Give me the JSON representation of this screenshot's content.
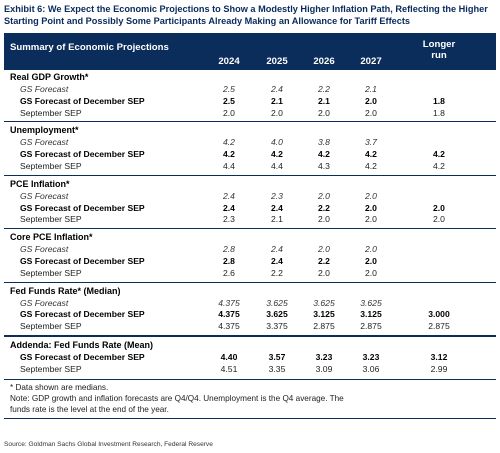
{
  "title": "Exhibit 6: We Expect the Economic Projections to Show a Modestly Higher Inflation Path, Reflecting the Higher Starting Point and Possibly Some Participants Already Making an Allowance for Tariff Effects",
  "header": {
    "label": "Summary of Economic Projections",
    "years": [
      "2024",
      "2025",
      "2026",
      "2027"
    ],
    "longer_run": "Longer run"
  },
  "sections": [
    {
      "title": "Real GDP Growth*",
      "rows": [
        {
          "label": "GS Forecast",
          "style": "italic",
          "values": [
            "2.5",
            "2.4",
            "2.2",
            "2.1"
          ],
          "longer": ""
        },
        {
          "label": "GS Forecast of December SEP",
          "style": "bold",
          "values": [
            "2.5",
            "2.1",
            "2.1",
            "2.0"
          ],
          "longer": "1.8"
        },
        {
          "label": "September SEP",
          "style": "normal",
          "values": [
            "2.0",
            "2.0",
            "2.0",
            "2.0"
          ],
          "longer": "1.8"
        }
      ]
    },
    {
      "title": "Unemployment*",
      "rows": [
        {
          "label": "GS Forecast",
          "style": "italic",
          "values": [
            "4.2",
            "4.0",
            "3.8",
            "3.7"
          ],
          "longer": ""
        },
        {
          "label": "GS Forecast of December SEP",
          "style": "bold",
          "values": [
            "4.2",
            "4.2",
            "4.2",
            "4.2"
          ],
          "longer": "4.2"
        },
        {
          "label": "September SEP",
          "style": "normal",
          "values": [
            "4.4",
            "4.4",
            "4.3",
            "4.2"
          ],
          "longer": "4.2"
        }
      ]
    },
    {
      "title": "PCE Inflation*",
      "rows": [
        {
          "label": "GS Forecast",
          "style": "italic",
          "values": [
            "2.4",
            "2.3",
            "2.0",
            "2.0"
          ],
          "longer": ""
        },
        {
          "label": "GS Forecast of December SEP",
          "style": "bold",
          "values": [
            "2.4",
            "2.4",
            "2.2",
            "2.0"
          ],
          "longer": "2.0"
        },
        {
          "label": "September SEP",
          "style": "normal",
          "values": [
            "2.3",
            "2.1",
            "2.0",
            "2.0"
          ],
          "longer": "2.0"
        }
      ]
    },
    {
      "title": "Core PCE Inflation*",
      "rows": [
        {
          "label": "GS Forecast",
          "style": "italic",
          "values": [
            "2.8",
            "2.4",
            "2.0",
            "2.0"
          ],
          "longer": ""
        },
        {
          "label": "GS Forecast of December SEP",
          "style": "bold",
          "values": [
            "2.8",
            "2.4",
            "2.2",
            "2.0"
          ],
          "longer": ""
        },
        {
          "label": "September SEP",
          "style": "normal",
          "values": [
            "2.6",
            "2.2",
            "2.0",
            "2.0"
          ],
          "longer": ""
        }
      ]
    },
    {
      "title": "Fed Funds Rate* (Median)",
      "rows": [
        {
          "label": "GS Forecast",
          "style": "italic",
          "values": [
            "4.375",
            "3.625",
            "3.625",
            "3.625"
          ],
          "longer": ""
        },
        {
          "label": "GS Forecast of December SEP",
          "style": "bold",
          "values": [
            "4.375",
            "3.625",
            "3.125",
            "3.125"
          ],
          "longer": "3.000"
        },
        {
          "label": "September SEP",
          "style": "normal",
          "values": [
            "4.375",
            "3.375",
            "2.875",
            "2.875"
          ],
          "longer": "2.875"
        }
      ]
    },
    {
      "title": "Addenda: Fed Funds Rate (Mean)",
      "rows": [
        {
          "label": "GS Forecast of December SEP",
          "style": "bold",
          "values": [
            "4.40",
            "3.57",
            "3.23",
            "3.23"
          ],
          "longer": "3.12"
        },
        {
          "label": "September SEP",
          "style": "normal",
          "values": [
            "4.51",
            "3.35",
            "3.09",
            "3.06"
          ],
          "longer": "2.99"
        }
      ]
    }
  ],
  "notes": [
    "* Data shown are medians.",
    "Note: GDP growth and inflation forecasts are Q4/Q4.  Unemployment is the Q4 average.  The",
    "funds rate is the level at the end of the year."
  ],
  "source": "Source: Goldman Sachs Global Investment Research, Federal Reserve"
}
